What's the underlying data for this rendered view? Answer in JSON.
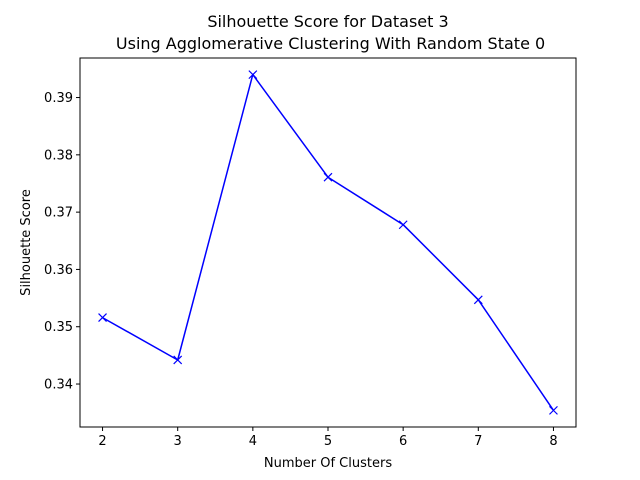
{
  "chart_data": {
    "type": "line",
    "title_line1": "Silhouette Score for Dataset 3",
    "title_line2": " Using Agglomerative Clustering With Random State 0",
    "xlabel": "Number Of Clusters",
    "ylabel": "Silhouette Score",
    "x": [
      2,
      3,
      4,
      5,
      6,
      7,
      8
    ],
    "y": [
      0.3516,
      0.3442,
      0.394,
      0.3761,
      0.3678,
      0.3547,
      0.3354
    ],
    "xlim": [
      1.7,
      8.3
    ],
    "ylim": [
      0.3325,
      0.3969
    ],
    "xticks": [
      2,
      3,
      4,
      5,
      6,
      7,
      8
    ],
    "yticks": [
      0.34,
      0.35,
      0.36,
      0.37,
      0.38,
      0.39
    ],
    "line_color": "#0000ff",
    "marker": "x",
    "grid": false
  }
}
